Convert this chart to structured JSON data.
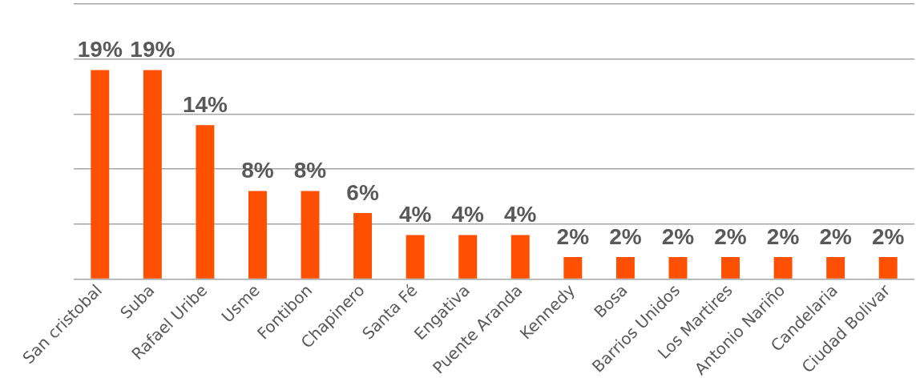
{
  "chart_data": {
    "type": "bar",
    "categories": [
      "San cristobal",
      "Suba",
      "Rafael Uribe",
      "Usme",
      "Fontibon",
      "Chapinero",
      "Santa Fé",
      "Engativa",
      "Puente Aranda",
      "Kennedy",
      "Bosa",
      "Barrios Unidos",
      "Los Martires",
      "Antonio Nariño",
      "Candelaria",
      "Ciudad Bolivar"
    ],
    "values": [
      19,
      19,
      14,
      8,
      8,
      6,
      4,
      4,
      4,
      2,
      2,
      2,
      2,
      2,
      2,
      2
    ],
    "value_labels": [
      "19%",
      "19%",
      "14%",
      "8%",
      "8%",
      "6%",
      "4%",
      "4%",
      "4%",
      "2%",
      "2%",
      "2%",
      "2%",
      "2%",
      "2%",
      "2%"
    ],
    "color": "#ff4f00",
    "ylim": [
      0,
      25
    ],
    "yticks": [
      {
        "value": 0,
        "label": null
      },
      {
        "value": 5,
        "label": null
      },
      {
        "value": 10,
        "label": null
      },
      {
        "value": 15,
        "label": null
      },
      {
        "value": 20,
        "label": null
      },
      {
        "value": 25,
        "label": null
      }
    ],
    "grid": "y",
    "tick_labels": "x"
  }
}
